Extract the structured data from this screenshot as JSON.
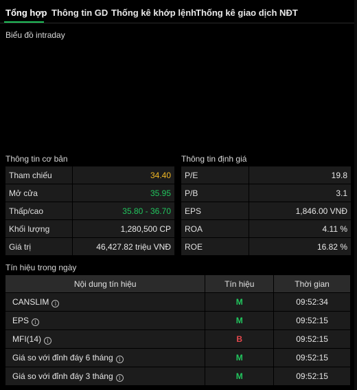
{
  "tabs": [
    {
      "label": "Tổng hợp",
      "active": true
    },
    {
      "label": "Thông tin GD",
      "active": false
    },
    {
      "label": "Thống kê khớp lệnh",
      "active": false
    },
    {
      "label": "Thống kê giao dịch NĐT",
      "active": false
    }
  ],
  "intraday": {
    "label": "Biểu đồ intraday"
  },
  "basic_info": {
    "title": "Thông tin cơ bản",
    "rows": [
      {
        "label": "Tham chiếu",
        "value": "34.40",
        "color": "#f2b824"
      },
      {
        "label": "Mở cửa",
        "value": "35.95",
        "color": "#22c55e"
      },
      {
        "label": "Thấp/cao",
        "value": "35.80 - 36.70",
        "color": "#22c55e"
      },
      {
        "label": "Khối lượng",
        "value": "1,280,500 CP",
        "color": ""
      },
      {
        "label": "Giá trị",
        "value": "46,427.82 triệu VNĐ",
        "color": ""
      }
    ]
  },
  "valuation": {
    "title": "Thông tin định giá",
    "rows": [
      {
        "label": "P/E",
        "value": "19.8"
      },
      {
        "label": "P/B",
        "value": "3.1"
      },
      {
        "label": "EPS",
        "value": "1,846.00 VNĐ"
      },
      {
        "label": "ROA",
        "value": "4.11 %"
      },
      {
        "label": "ROE",
        "value": "16.82 %"
      }
    ]
  },
  "signals": {
    "title": "Tín hiệu trong ngày",
    "headers": {
      "content": "Nội dung tín hiệu",
      "signal": "Tín hiệu",
      "time": "Thời gian"
    },
    "info_glyph": "i",
    "rows": [
      {
        "content": "CANSLIM",
        "signal": "M",
        "signal_color": "#22c55e",
        "time": "09:52:34"
      },
      {
        "content": "EPS",
        "signal": "M",
        "signal_color": "#22c55e",
        "time": "09:52:15"
      },
      {
        "content": "MFI(14)",
        "signal": "B",
        "signal_color": "#e5484d",
        "time": "09:52:15"
      },
      {
        "content": "Giá so với đỉnh đáy 6 tháng",
        "signal": "M",
        "signal_color": "#22c55e",
        "time": "09:52:15"
      },
      {
        "content": "Giá so với đỉnh đáy 3 tháng",
        "signal": "M",
        "signal_color": "#22c55e",
        "time": "09:52:15"
      }
    ]
  }
}
